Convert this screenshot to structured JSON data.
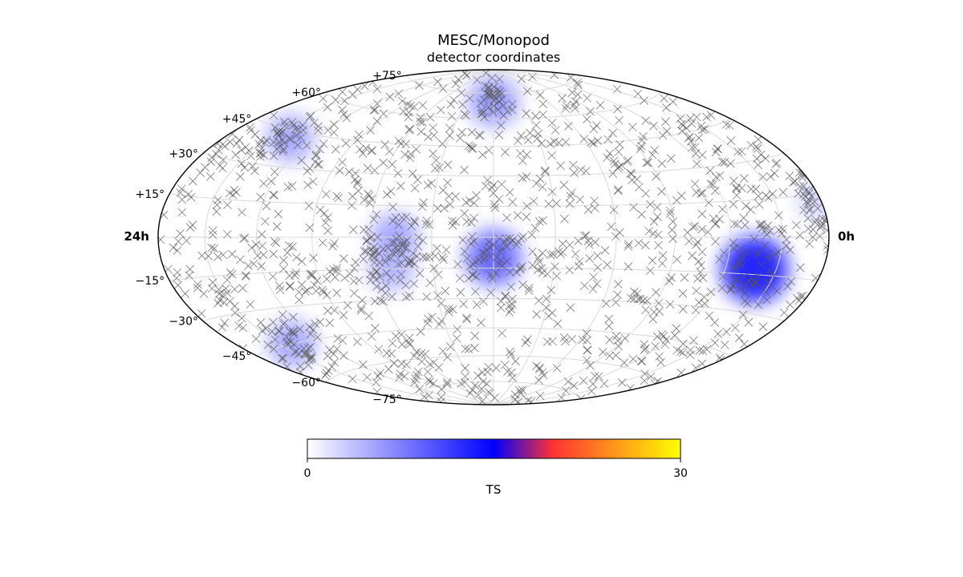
{
  "chart_data": {
    "type": "scatter",
    "projection": "hammer-aitoff",
    "title": "MESC/Monopod",
    "subtitle": "detector coordinates",
    "ra_labels": {
      "left": "24h",
      "right": "0h"
    },
    "dec_tick_labels": [
      {
        "dec": 75,
        "label": "+75°"
      },
      {
        "dec": 60,
        "label": "+60°"
      },
      {
        "dec": 45,
        "label": "+45°"
      },
      {
        "dec": 30,
        "label": "+30°"
      },
      {
        "dec": 15,
        "label": "+15°"
      },
      {
        "dec": -15,
        "label": "−15°"
      },
      {
        "dec": -30,
        "label": "−30°"
      },
      {
        "dec": -45,
        "label": "−45°"
      },
      {
        "dec": -60,
        "label": "−60°"
      },
      {
        "dec": -75,
        "label": "−75°"
      }
    ],
    "grid": true,
    "graticule": {
      "dec_step_deg": 15,
      "lon_step_deg": 30
    },
    "marker": {
      "shape": "x",
      "color": "#555555"
    },
    "n_events": 1350,
    "hotspots": [
      {
        "lon": -137,
        "dec": -13,
        "ts": 15
      },
      {
        "lon": 0,
        "dec": -10,
        "ts": 10
      },
      {
        "lon": 0,
        "dec": 70,
        "ts": 7
      },
      {
        "lon": 48,
        "dec": 0,
        "ts": 6
      },
      {
        "lon": 51,
        "dec": -15,
        "ts": 5
      },
      {
        "lon": 135,
        "dec": 42,
        "ts": 6
      },
      {
        "lon": 141,
        "dec": -45,
        "ts": 6
      },
      {
        "lon": -178,
        "dec": 13,
        "ts": 3
      }
    ],
    "colorbar": {
      "label": "TS",
      "min": 0,
      "max": 30,
      "min_label": "0",
      "max_label": "30",
      "stops": [
        {
          "pos": 0.0,
          "color": "#ffffff"
        },
        {
          "pos": 0.5,
          "color": "#0000ff"
        },
        {
          "pos": 0.66,
          "color": "#ff3333"
        },
        {
          "pos": 1.0,
          "color": "#ffff00"
        }
      ]
    }
  }
}
